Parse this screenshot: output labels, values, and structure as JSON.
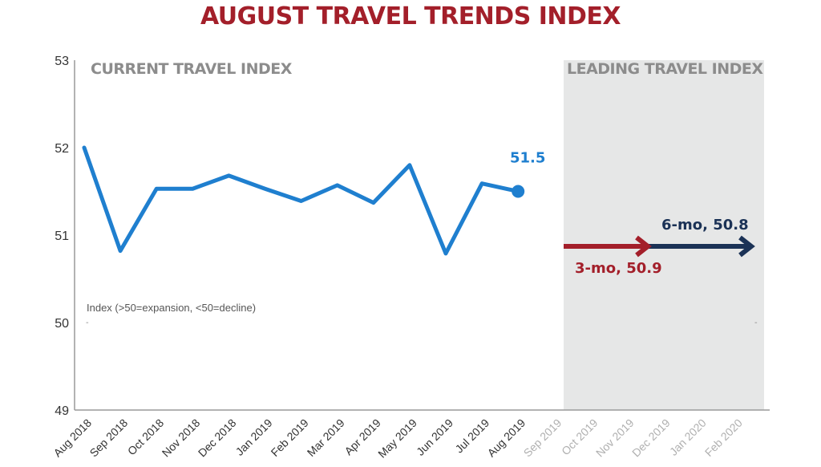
{
  "chart_data": {
    "type": "line",
    "title": "AUGUST TRAVEL TRENDS INDEX",
    "xlabel": "",
    "ylabel": "Index (>50=expansion, <50=decline)",
    "ylim": [
      49,
      53
    ],
    "yticks": [
      49,
      50,
      51,
      52,
      53
    ],
    "grid": false,
    "categories": [
      "Aug 2018",
      "Sep 2018",
      "Oct 2018",
      "Nov 2018",
      "Dec 2018",
      "Jan 2019",
      "Feb 2019",
      "Mar 2019",
      "Apr 2019",
      "May 2019",
      "Jun 2019",
      "Jul 2019",
      "Aug 2019",
      "Sep 2019",
      "Oct 2019",
      "Nov 2019",
      "Dec 2019",
      "Jan 2020",
      "Feb 2020"
    ],
    "series": [
      {
        "name": "Current Travel Index",
        "color": "#1f7fcf",
        "values": [
          52.0,
          50.82,
          51.53,
          51.53,
          51.68,
          51.53,
          51.39,
          51.57,
          51.37,
          51.8,
          50.79,
          51.59,
          51.5
        ],
        "end_label": "51.5"
      },
      {
        "name": "3-mo Leading Travel Index",
        "color": "#a31f2a",
        "value": 50.9,
        "label": "3-mo, 50.9",
        "from": "Sep 2019",
        "to": "Nov 2019"
      },
      {
        "name": "6-mo Leading Travel Index",
        "color": "#1b3256",
        "value": 50.8,
        "label": "6-mo, 50.8",
        "from": "Sep 2019",
        "to": "Feb 2020"
      }
    ],
    "regions": [
      {
        "label": "CURRENT TRAVEL INDEX",
        "from": "Aug 2018",
        "to": "Aug 2019"
      },
      {
        "label": "LEADING TRAVEL INDEX",
        "from": "Sep 2019",
        "to": "Feb 2020",
        "shaded": true
      }
    ],
    "annotations": [
      "Index (>50=expansion, <50=decline)"
    ]
  },
  "colors": {
    "title": "#a31f2a",
    "current_line": "#1f7fcf",
    "three_mo": "#a31f2a",
    "six_mo": "#1b3256",
    "leading_bg": "#e6e7e7",
    "section_label": "#8c8c8c"
  }
}
